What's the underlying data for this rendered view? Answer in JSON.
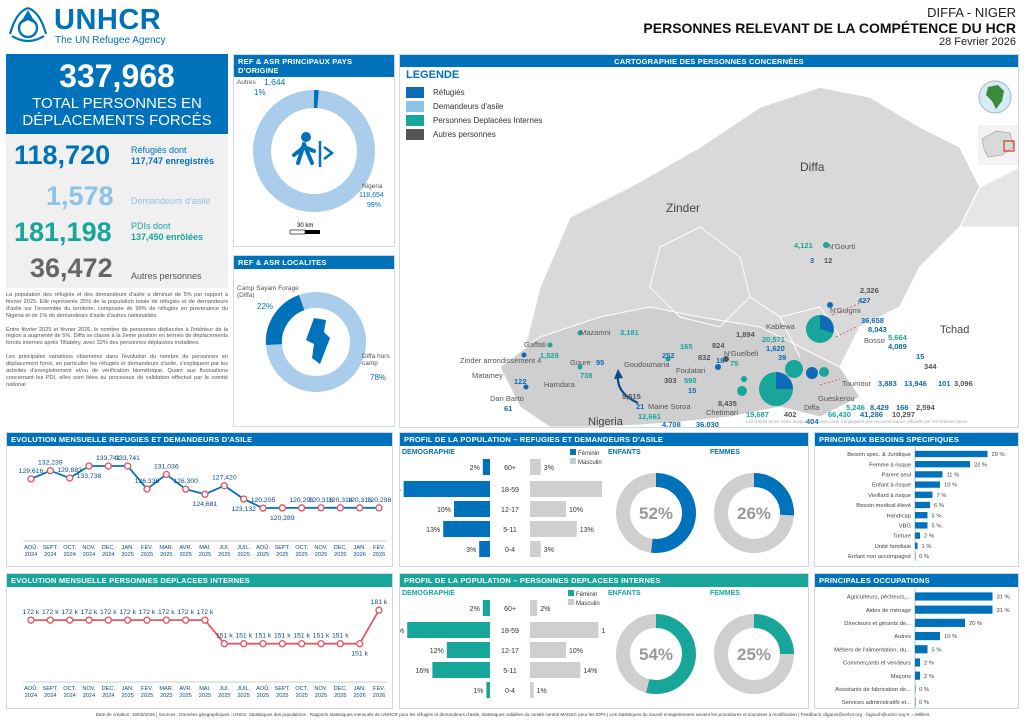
{
  "brand": {
    "name": "UNHCR",
    "tagline": "The UN Refugee Agency"
  },
  "header": {
    "location": "DIFFA - NIGER",
    "title": "PERSONNES RELEVANT DE LA COMPÉTENCE DU HCR",
    "date": "28 Fevrier 2026"
  },
  "total": {
    "value": "337,968",
    "label1": "TOTAL PERSONNES EN",
    "label2": "DÉPLACEMENTS FORCÉS"
  },
  "refugees": {
    "value": "118,720",
    "l1": "Réfugiés dont",
    "l2": "117,747 enregistrés"
  },
  "asylum": {
    "value": "1,578",
    "l1": "Demandeurs d'asile"
  },
  "idp": {
    "value": "181,198",
    "l1": "PDIs dont",
    "l2": "137,450 enrôlées"
  },
  "others": {
    "value": "36,472",
    "l1": "Autres personnes"
  },
  "narrative": {
    "p1": "La population des réfugiés et des demandeurs d'asile a diminué de 5% par rapport à février 2025. Elle représente 35% de la population totale de réfugiés et de demandeurs d'asile sur l'ensemble du territoire, composée de 99% de réfugiés en provenance du Nigeria et de 1% de demandeurs d'asile d'autres nationalités.",
    "p2": "Entre février 2025 et février 2026, le nombre de personnes déplacées à l'intérieur de la région a augmenté de 5%. Diffa se classe à la 2eme position en termes de déplacements forcés internes après Tillabéry, avec 32% des personnes déplacées installées.",
    "p3": "Les principales variations observées dans l'évolution du nombre de personnes en déplacement forcé, en particulier les réfugiés et demandeurs d'asile, s'expliquent par les activités d'enregistrement et/ou de vérification biométrique. Quant aux fluctuations concernant les PDI, elles sont liées au processus de validation effectué par le comité national"
  },
  "origin": {
    "title": "REF & ASR PRINCIPAUX PAYS D'ORIGINE",
    "others_label": "Autres",
    "others_value": "1,644",
    "others_pct": "1%",
    "nigeria_label": "Nigeria",
    "nigeria_value": "118,654",
    "nigeria_pct": "99%",
    "scale": "30 km"
  },
  "local": {
    "title": "REF & ASR LOCALITES",
    "camp_label": "Camp Sayam Forage (Diffa)",
    "camp_pct": "22%",
    "hors_label": "Diffa hors camp",
    "hors_pct": "78%"
  },
  "map": {
    "title": "CARTOGRAPHIE DES PERSONNES CONCERNÉES",
    "legend_title": "LEGENDE",
    "legend": [
      {
        "label": "Réfugiés",
        "color": "#0d6bb5"
      },
      {
        "label": "Demandeurs d'asile",
        "color": "#8ec3e8"
      },
      {
        "label": "Personnes Deplacées Internes",
        "color": "#18a69b"
      },
      {
        "label": "Autres personnes",
        "color": "#555555"
      }
    ],
    "regions": {
      "diffa": "Diffa",
      "zinder": "Zinder",
      "tchad": "Tchad",
      "nigeria": "Nigeria"
    },
    "places": [
      {
        "n": "N'Gourti",
        "v": [
          "4,121",
          "3",
          "12"
        ]
      },
      {
        "n": "N'Guigmi",
        "v": [
          "2,326",
          "427"
        ]
      },
      {
        "n": "Bosso",
        "v": [
          "36,658",
          "8,043",
          "5,664",
          "4,089",
          "15",
          "344"
        ]
      },
      {
        "n": "Kablewa",
        "v": [
          "1,894",
          "20,571",
          "1,620",
          "39"
        ]
      },
      {
        "n": "Toumour",
        "v": [
          "3,883",
          "13,946",
          "101",
          "3,096"
        ]
      },
      {
        "n": "Gueskerou",
        "v": [
          "5,246",
          "8,429",
          "166",
          "2,594"
        ]
      },
      {
        "n": "Diffa",
        "v": [
          "19,687",
          "402",
          "66,430",
          "41,286",
          "10,297"
        ]
      },
      {
        "n": "Chetimari",
        "v": [
          "8,435",
          "404"
        ]
      },
      {
        "n": "Maine Soroa",
        "v": [
          "5,515",
          "21",
          "12,661",
          "4,708",
          "36,030"
        ]
      },
      {
        "n": "Foulatari",
        "v": [
          "303",
          "590",
          "15"
        ]
      },
      {
        "n": "N'Guelbeli",
        "v": [
          "824",
          "832",
          "18",
          "75"
        ]
      },
      {
        "n": "Goudoumaria",
        "v": [
          "165",
          "252"
        ]
      },
      {
        "n": "Mazamni",
        "v": [
          "3,181"
        ]
      },
      {
        "n": "Gaffati",
        "v": [
          "1,528"
        ]
      },
      {
        "n": "Goure",
        "v": [
          "95",
          "738"
        ]
      },
      {
        "n": "Zinder arrondissement 4",
        "v": []
      },
      {
        "n": "Matamey",
        "v": [
          "122"
        ]
      },
      {
        "n": "Hamdara",
        "v": []
      },
      {
        "n": "Dan Barto",
        "v": [
          "61"
        ]
      }
    ],
    "disclaimer": "Les limites et les noms indiqués sur cette carte n'impliquent pas reconnaissance officielle par les Nations Unies"
  },
  "evo_ref": {
    "title": "EVOLUTION MENSUELLE REFUGIES ET DEMANDEURS D'ASILE",
    "chart_data": {
      "type": "line",
      "title": "EVOLUTION MENSUELLE REFUGIES ET DEMANDEURS D'ASILE",
      "categories": [
        "AOÛ. 2024",
        "SEPT. 2024",
        "OCT. 2024",
        "NOV. 2024",
        "DEC. 2024",
        "JAN. 2025",
        "FEV. 2025",
        "MAR. 2025",
        "AVR. 2025",
        "MAI. 2025",
        "JUI. 2025",
        "JUIL. 2025",
        "AOÛ. 2025",
        "SEPT. 2025",
        "OCT. 2025",
        "NOV. 2025",
        "DEC. 2025",
        "JAN. 2026",
        "FEV. 2026"
      ],
      "values": [
        129616,
        132239,
        129883,
        133738,
        133741,
        133741,
        126336,
        131036,
        126300,
        124681,
        127420,
        123132,
        120205,
        120289,
        120291,
        120316,
        120314,
        120316,
        120298
      ],
      "labels": [
        "129,616",
        "132,239",
        "129,883",
        "133,738",
        "133,741",
        "133,741",
        "126,336",
        "131,036",
        "126,300",
        "124,681",
        "127,420",
        "123,132",
        "120,205",
        "120,289",
        "120,291",
        "120,316",
        "120,314",
        "120,316",
        "120,298"
      ],
      "ylim": [
        118000,
        136000
      ]
    }
  },
  "evo_idp": {
    "title": "EVOLUTION MENSUELLE PERSONNES DEPLACEES INTERNES",
    "chart_data": {
      "type": "line",
      "title": "EVOLUTION MENSUELLE PERSONNES DEPLACEES INTERNES",
      "categories": [
        "AOÛ. 2024",
        "SEPT. 2024",
        "OCT. 2024",
        "NOV. 2024",
        "DEC. 2024",
        "JAN. 2025",
        "FEV. 2025",
        "MAR. 2025",
        "AVR. 2025",
        "MAI. 2025",
        "JUI. 2025",
        "JUIL. 2025",
        "AOÛ. 2025",
        "SEPT. 2025",
        "OCT. 2025",
        "NOV. 2025",
        "DEC. 2025",
        "JAN. 2026",
        "FEV. 2026"
      ],
      "values": [
        172,
        172,
        172,
        172,
        172,
        172,
        172,
        172,
        172,
        172,
        151,
        151,
        151,
        151,
        151,
        151,
        151,
        151,
        181
      ],
      "labels": [
        "172 k",
        "172 k",
        "172 k",
        "172 k",
        "172 k",
        "172 k",
        "172 k",
        "172 k",
        "172 k",
        "172 k",
        "151 k",
        "151 k",
        "151 k",
        "151 k",
        "151 k",
        "151 k",
        "151 k",
        "151 k",
        "181 k"
      ],
      "unit": "k",
      "ylim": [
        140,
        190
      ]
    }
  },
  "profile_ref": {
    "title": "PROFIL DE LA POPULATION – REFUGIES ET DEMANDEURS D'ASILE",
    "demo": "DEMOGRAPHIE",
    "enfants": "ENFANTS",
    "femmes": "FEMMES",
    "female": "Féminin",
    "male": "Masculin",
    "chart_data": {
      "type": "bar",
      "categories": [
        "60+",
        "18-59",
        "12-17",
        "5-11",
        "0-4"
      ],
      "series": [
        {
          "name": "Féminin",
          "values": [
            2,
            24,
            10,
            13,
            3
          ]
        },
        {
          "name": "Masculin",
          "values": [
            3,
            20,
            10,
            13,
            3
          ]
        }
      ],
      "labels_f": [
        "2%",
        "24%",
        "10%",
        "13%",
        "3%"
      ],
      "labels_m": [
        "3%",
        "20%",
        "10%",
        "13%",
        "3%"
      ]
    },
    "enfants_pct": 52,
    "enfants_label": "52%",
    "femmes_pct": 26,
    "femmes_label": "26%"
  },
  "profile_idp": {
    "title": "PROFIL DE LA POPULATION – PERSONNES DEPLACEES INTERNES",
    "demo": "DEMOGRAPHIE",
    "enfants": "ENFANTS",
    "femmes": "FEMMES",
    "female": "Féminin",
    "male": "Masculin",
    "chart_data": {
      "type": "bar",
      "categories": [
        "60+",
        "18-59",
        "12-17",
        "5-11",
        "0-4"
      ],
      "series": [
        {
          "name": "Féminin",
          "values": [
            2,
            23,
            12,
            16,
            1
          ]
        },
        {
          "name": "Masculin",
          "values": [
            2,
            19,
            10,
            14,
            1
          ]
        }
      ],
      "labels_f": [
        "2%",
        "23%",
        "12%",
        "16%",
        "1%"
      ],
      "labels_m": [
        "2%",
        "19%",
        "10%",
        "14%",
        "1%"
      ]
    },
    "enfants_pct": 54,
    "enfants_label": "54%",
    "femmes_pct": 25,
    "femmes_label": "25%"
  },
  "besoins": {
    "title": "PRINCIPAUX BESOINS SPECIFIQUES",
    "chart_data": {
      "type": "bar",
      "categories": [
        "Besoin spec. & Juridique",
        "Femme à risque",
        "Parent seul",
        "Enfant à risque",
        "Vieillard à risque",
        "Besoin medical élevé",
        "Handicap",
        "VBG",
        "Torture",
        "Unité familiale",
        "Enfant non accompagné"
      ],
      "values": [
        29,
        22,
        11,
        10,
        7,
        6,
        5,
        5,
        2,
        1,
        0
      ],
      "labels": [
        "29 %",
        "22 %",
        "11 %",
        "10 %",
        "7 %",
        "6 %",
        "5 %",
        "5 %",
        "2 %",
        "1 %",
        "0 %"
      ]
    }
  },
  "occup": {
    "title": "PRINCIPALES OCCUPATIONS",
    "chart_data": {
      "type": "bar",
      "categories": [
        "Agriculteurs, pêcheurs,...",
        "Aides de ménage",
        "Directeurs et gérants de...",
        "Autres",
        "Métiers de l'alimentation, du...",
        "Commerçants et vendeurs",
        "Maçons",
        "Assistants de fabrication de...",
        "Services administratifs et..."
      ],
      "values": [
        31,
        31,
        20,
        10,
        5,
        2,
        2,
        0,
        0
      ],
      "labels": [
        "31 %",
        "31 %",
        "20 %",
        "10 %",
        "5 %",
        "2 %",
        "2 %",
        "0 %",
        "0 %"
      ]
    }
  },
  "footer": "Date de création: 19/03/2026 | Sources : Données géographiques : UNCS. Statistiques des populations : Rapports statistiques mensuels de UNHCR pour les réfugiés et demandeurs d'asile, statistiques validées du comité central MANSC pour les IDPs | Les statistiques du nouvel enregistrement suivent les procédures et soumises à modification | Feedback: diganni@unhcr.org - fagourh@unhcr.org  K = Milliers",
  "colors": {
    "blue": "#0072bc",
    "teal": "#18a69b",
    "lightblue": "#8ec3e8",
    "grey": "#555555",
    "red": "#e05a66"
  }
}
